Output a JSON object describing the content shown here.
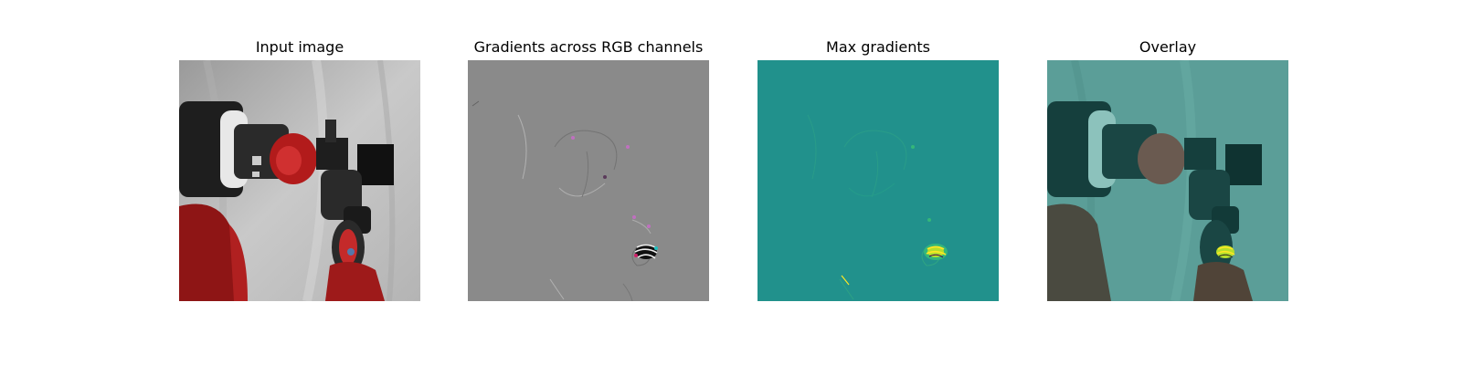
{
  "figure": {
    "panels": [
      {
        "title": "Input image"
      },
      {
        "title": "Gradients across RGB channels"
      },
      {
        "title": "Max gradients"
      },
      {
        "title": "Overlay"
      }
    ]
  },
  "colors": {
    "background_gray": "#8a8a8a",
    "teal": "#21918c",
    "robot_red": "#a81b1b",
    "robot_dark": "#222222",
    "hotspot": "#fde725"
  }
}
